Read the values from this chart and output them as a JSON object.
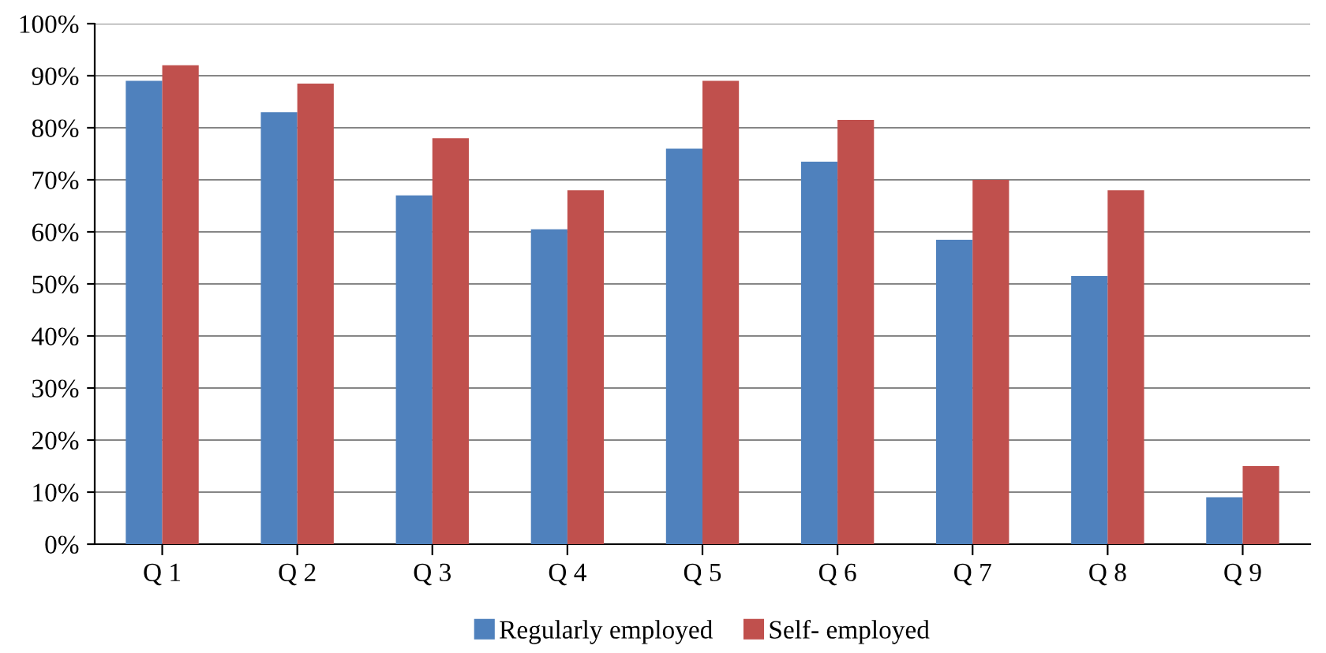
{
  "chart_data": {
    "type": "bar",
    "categories": [
      "Q 1",
      "Q 2",
      "Q 3",
      "Q 4",
      "Q 5",
      "Q 6",
      "Q 7",
      "Q 8",
      "Q 9"
    ],
    "series": [
      {
        "name": "Regularly employed",
        "color": "#4f81bd",
        "values": [
          89,
          83,
          67,
          60.5,
          76,
          73.5,
          58.5,
          51.5,
          9
        ]
      },
      {
        "name": "Self- employed",
        "color": "#c0504d",
        "values": [
          92,
          88.5,
          78,
          68,
          89,
          81.5,
          70,
          68,
          15
        ]
      }
    ],
    "ylim": [
      0,
      100
    ],
    "yticks": [
      {
        "value": 0,
        "label": "0%"
      },
      {
        "value": 10,
        "label": "10%"
      },
      {
        "value": 20,
        "label": "20%"
      },
      {
        "value": 30,
        "label": "30%"
      },
      {
        "value": 40,
        "label": "40%"
      },
      {
        "value": 50,
        "label": "50%"
      },
      {
        "value": 60,
        "label": "60%"
      },
      {
        "value": 70,
        "label": "70%"
      },
      {
        "value": 80,
        "label": "80%"
      },
      {
        "value": 90,
        "label": "90%"
      },
      {
        "value": 100,
        "label": "100%"
      }
    ],
    "grid": "y",
    "legend": "bottom"
  }
}
